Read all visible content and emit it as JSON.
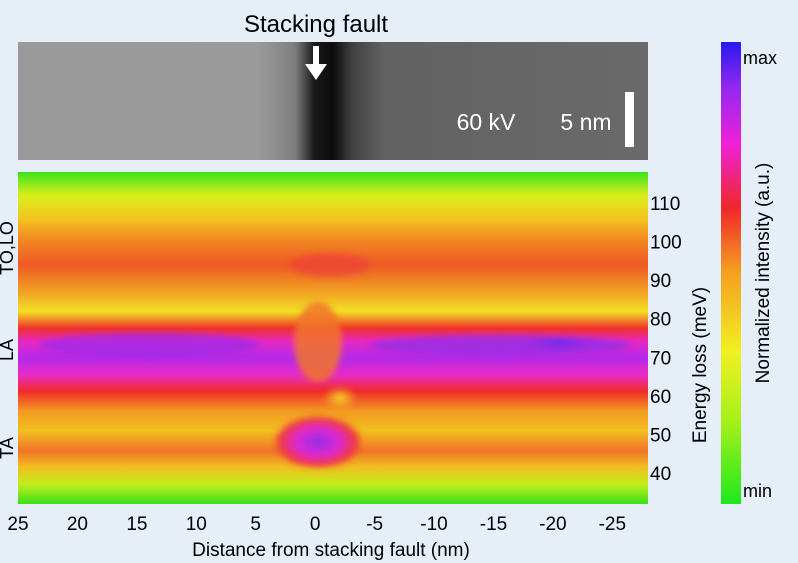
{
  "chart_data": [
    {
      "type": "image",
      "title": "Stacking fault",
      "annotations": {
        "voltage": "60 kV",
        "scalebar": "5 nm"
      }
    },
    {
      "type": "heatmap",
      "xlabel": "Distance from stacking fault (nm)",
      "ylabel": "Energy loss (meV)",
      "x_ticks": [
        "25",
        "20",
        "15",
        "10",
        "5",
        "0",
        "-5",
        "-10",
        "-15",
        "-20",
        "-25"
      ],
      "xlim": [
        25,
        -28
      ],
      "y_ticks": [
        "40",
        "50",
        "60",
        "70",
        "80",
        "90",
        "100",
        "110"
      ],
      "ylim": [
        32,
        118
      ],
      "mode_labels": [
        "TO,LO",
        "LA",
        "TA"
      ],
      "colorbar": {
        "label": "Normalized intensity (a.u.)",
        "max_label": "max",
        "min_label": "min",
        "colors": [
          "#1ee81e",
          "#a6f019",
          "#f0f020",
          "#f5a020",
          "#f02828",
          "#f020d8",
          "#9428f0",
          "#2818f0"
        ]
      }
    }
  ]
}
